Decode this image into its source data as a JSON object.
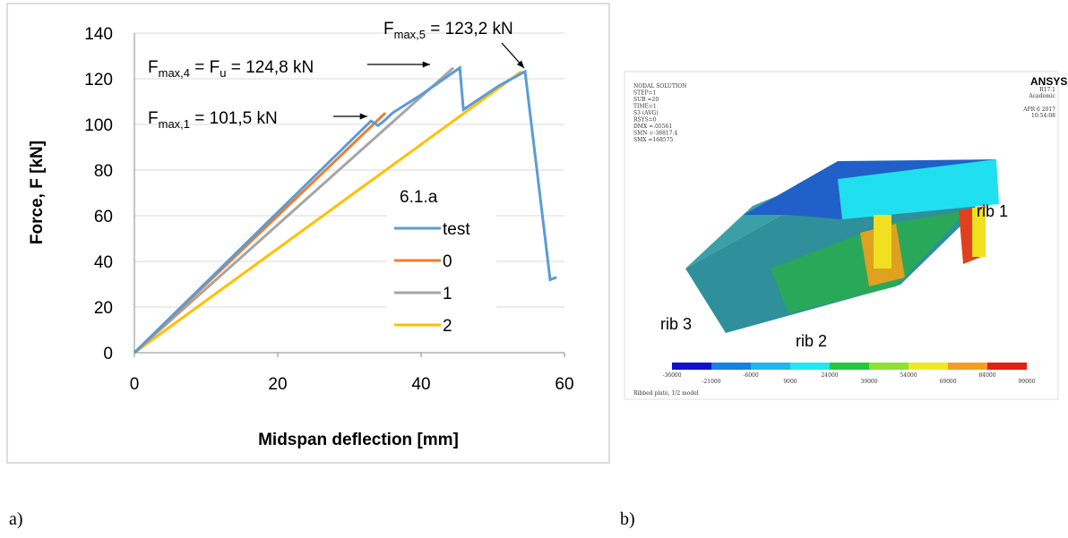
{
  "chart_data": {
    "type": "line",
    "xlabel": "Midspan deflection [mm]",
    "ylabel": "Force, F [kN]",
    "xlim": [
      0,
      60
    ],
    "xticks": [
      0,
      20,
      40,
      60
    ],
    "ylim": [
      0,
      140
    ],
    "yticks": [
      0,
      20,
      40,
      60,
      80,
      100,
      120,
      140
    ],
    "grid": true,
    "legend_title": "6.1.a",
    "legend_position": "center right",
    "series": [
      {
        "name": "test",
        "color": "#5b9bd5",
        "x": [
          0,
          33,
          34,
          35,
          36,
          38,
          40,
          45.4,
          45.9,
          50.9,
          54.5,
          58,
          58.9
        ],
        "values": [
          0,
          101.5,
          99.5,
          102,
          105,
          109,
          113,
          124.8,
          106.5,
          117,
          123.2,
          32,
          33
        ]
      },
      {
        "name": "0",
        "color": "#ed7d31",
        "x": [
          0,
          35
        ],
        "values": [
          0,
          105
        ]
      },
      {
        "name": "1",
        "color": "#a5a5a5",
        "x": [
          0,
          44.5
        ],
        "values": [
          0,
          124.8
        ]
      },
      {
        "name": "2",
        "color": "#ffc000",
        "x": [
          0,
          54
        ],
        "values": [
          0,
          123.2
        ]
      }
    ],
    "annotations": [
      [
        {
          "text": "F"
        },
        {
          "sub": "max,5"
        },
        {
          "text": " = 123,2 kN"
        }
      ],
      [
        {
          "text": "F"
        },
        {
          "sub": "max,4"
        },
        {
          "text": " = F"
        },
        {
          "sub": "u"
        },
        {
          "text": " =  124,8 kN"
        }
      ],
      [
        {
          "text": "F"
        },
        {
          "sub": "max,1"
        },
        {
          "text": " = 101,5 kN"
        }
      ]
    ]
  },
  "panel_labels": [
    "a)",
    "b)"
  ],
  "figure_b": {
    "header": [
      "NODAL SOLUTION",
      "STEP=1",
      "SUB =20",
      "TIME=1",
      "S3       (AVG)",
      "RSYS=0",
      "DMX =.05561",
      "SMN =-38817.4",
      "SMX =168575"
    ],
    "brand": "ANSYS",
    "version": [
      "R17.1",
      "Academic"
    ],
    "date": [
      "APR  6 2017",
      "10:54:08"
    ],
    "rib_labels": [
      "rib 1",
      "rib 2",
      "rib 3"
    ],
    "colorbar_top": [
      "-36000",
      "-6000",
      "24000",
      "54000",
      "84000"
    ],
    "colorbar_bottom": [
      "-21000",
      "9000",
      "39000",
      "69000",
      "99000"
    ],
    "caption": "Ribbed plate, 1/2 model"
  }
}
